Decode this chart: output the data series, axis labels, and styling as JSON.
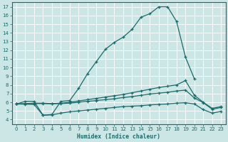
{
  "background_color": "#cce5e5",
  "grid_color": "#b0d5d5",
  "line_color": "#1a6b6b",
  "xlabel": "Humidex (Indice chaleur)",
  "xlim": [
    -0.5,
    23.5
  ],
  "ylim": [
    3.5,
    17.5
  ],
  "xticks": [
    0,
    1,
    2,
    3,
    4,
    5,
    6,
    7,
    8,
    9,
    10,
    11,
    12,
    13,
    14,
    15,
    16,
    17,
    18,
    19,
    20,
    21,
    22,
    23
  ],
  "yticks": [
    4,
    5,
    6,
    7,
    8,
    9,
    10,
    11,
    12,
    13,
    14,
    15,
    16,
    17
  ],
  "line1_x": [
    0,
    1,
    2,
    3,
    4,
    5,
    6,
    7,
    8,
    9,
    10,
    11,
    12,
    13,
    14,
    15,
    16,
    17,
    18,
    19,
    20
  ],
  "line1_y": [
    5.8,
    6.1,
    6.1,
    4.5,
    4.6,
    6.1,
    6.2,
    7.6,
    9.3,
    10.7,
    12.1,
    12.9,
    13.5,
    14.4,
    15.8,
    16.2,
    17.0,
    17.0,
    15.3,
    11.2,
    8.7
  ],
  "line2_x": [
    0,
    1,
    2,
    3,
    4,
    5,
    6,
    7,
    8,
    9,
    10,
    11,
    12,
    13,
    14,
    15,
    16,
    17,
    18,
    19,
    20,
    21,
    22,
    23
  ],
  "line2_y": [
    5.8,
    5.85,
    5.9,
    5.9,
    5.85,
    5.9,
    6.0,
    6.15,
    6.3,
    6.45,
    6.6,
    6.75,
    6.9,
    7.1,
    7.3,
    7.5,
    7.7,
    7.85,
    8.0,
    8.5,
    6.8,
    6.0,
    5.3,
    5.5
  ],
  "line3_x": [
    0,
    1,
    2,
    3,
    4,
    5,
    6,
    7,
    8,
    9,
    10,
    11,
    12,
    13,
    14,
    15,
    16,
    17,
    18,
    19,
    20,
    21,
    22,
    23
  ],
  "line3_y": [
    5.8,
    5.82,
    5.85,
    5.85,
    5.82,
    5.85,
    5.9,
    6.0,
    6.1,
    6.2,
    6.3,
    6.4,
    6.55,
    6.65,
    6.8,
    6.95,
    7.05,
    7.15,
    7.3,
    7.4,
    6.5,
    5.95,
    5.2,
    5.4
  ],
  "line4_x": [
    0,
    1,
    2,
    3,
    4,
    5,
    6,
    7,
    8,
    9,
    10,
    11,
    12,
    13,
    14,
    15,
    16,
    17,
    18,
    19,
    20,
    21,
    22,
    23
  ],
  "line4_y": [
    5.8,
    5.78,
    5.75,
    4.5,
    4.55,
    4.75,
    4.9,
    5.0,
    5.1,
    5.2,
    5.3,
    5.4,
    5.5,
    5.55,
    5.6,
    5.7,
    5.75,
    5.8,
    5.9,
    5.95,
    5.8,
    5.15,
    4.75,
    4.95
  ]
}
